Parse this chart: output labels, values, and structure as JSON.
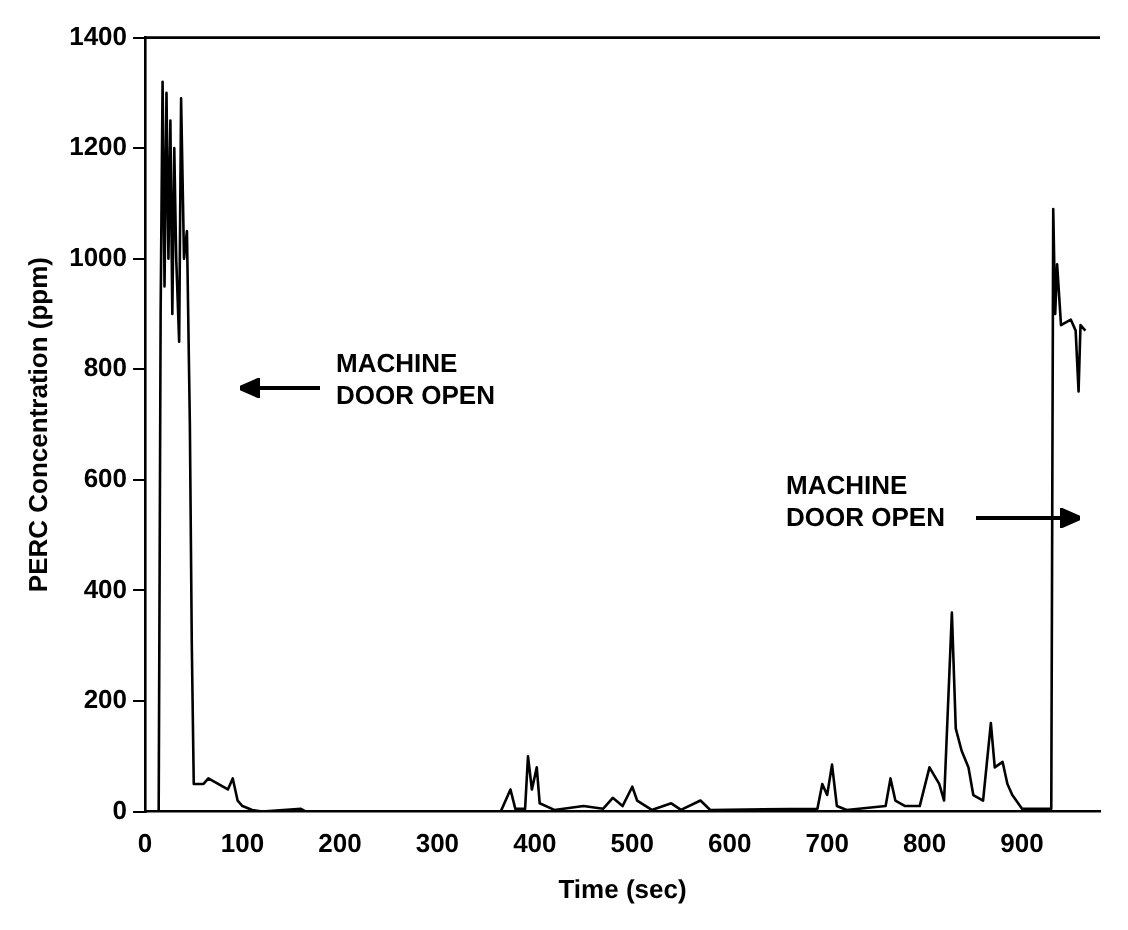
{
  "chart_data": {
    "type": "line",
    "xlabel": "Time (sec)",
    "ylabel": "PERC Concentration (ppm)",
    "x": [
      0,
      14,
      16,
      18,
      20,
      22,
      24,
      26,
      28,
      30,
      32,
      35,
      37,
      40,
      43,
      46,
      48,
      50,
      60,
      65,
      70,
      80,
      85,
      90,
      95,
      100,
      110,
      120,
      160,
      165,
      170,
      365,
      375,
      380,
      390,
      393,
      397,
      402,
      405,
      420,
      450,
      470,
      480,
      490,
      500,
      505,
      520,
      540,
      550,
      570,
      580,
      690,
      695,
      700,
      705,
      710,
      720,
      760,
      765,
      770,
      780,
      795,
      805,
      815,
      820,
      828,
      832,
      838,
      845,
      850,
      860,
      868,
      872,
      880,
      885,
      890,
      900,
      930,
      932,
      934,
      936,
      940,
      950,
      955,
      958,
      960,
      965
    ],
    "series": [
      {
        "color": "#000000",
        "values": [
          0,
          0,
          900,
          1320,
          950,
          1300,
          1000,
          1250,
          900,
          1200,
          1000,
          850,
          1290,
          1000,
          1050,
          700,
          300,
          50,
          50,
          60,
          55,
          45,
          40,
          60,
          20,
          10,
          3,
          0,
          5,
          0,
          0,
          0,
          40,
          5,
          5,
          100,
          40,
          80,
          15,
          3,
          10,
          5,
          25,
          10,
          45,
          20,
          3,
          15,
          3,
          20,
          3,
          5,
          50,
          30,
          85,
          10,
          3,
          10,
          60,
          20,
          10,
          10,
          80,
          50,
          20,
          360,
          150,
          110,
          80,
          30,
          20,
          160,
          80,
          90,
          50,
          30,
          5,
          5,
          1090,
          900,
          990,
          880,
          890,
          870,
          760,
          880,
          870
        ]
      }
    ],
    "xlim": [
      0,
      980
    ],
    "xticks": [
      0,
      100,
      200,
      300,
      400,
      500,
      600,
      700,
      800,
      900
    ],
    "ylim": [
      0,
      1400
    ],
    "yticks": [
      0,
      200,
      400,
      600,
      800,
      1000,
      1200,
      1400
    ],
    "grid": false,
    "legend": false,
    "marker": "none",
    "line_style": "solid",
    "annotations": [
      "MACHINE DOOR OPEN",
      "MACHINE DOOR OPEN"
    ]
  }
}
